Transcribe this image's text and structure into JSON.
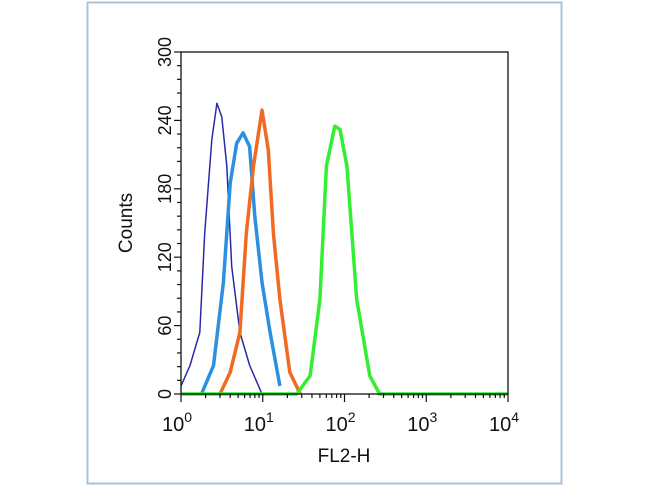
{
  "chart_data": {
    "type": "line",
    "title": "",
    "xlabel": "FL2-H",
    "ylabel": "Counts",
    "x_scale": "log",
    "xlim": [
      1,
      10000
    ],
    "ylim": [
      0,
      300
    ],
    "x_ticks": [
      1,
      10,
      100,
      1000,
      10000
    ],
    "x_tick_labels": [
      {
        "base": "10",
        "exp": "0"
      },
      {
        "base": "10",
        "exp": "1"
      },
      {
        "base": "10",
        "exp": "2"
      },
      {
        "base": "10",
        "exp": "3"
      },
      {
        "base": "10",
        "exp": "4"
      }
    ],
    "y_ticks": [
      0,
      60,
      120,
      180,
      240,
      300
    ],
    "y_tick_labels": [
      "0",
      "60",
      "120",
      "180",
      "240",
      "300"
    ],
    "grid": false,
    "legend": "none",
    "series": [
      {
        "color": "#2a2aa8",
        "x": [
          1.0,
          1.29,
          1.7,
          1.95,
          2.38,
          2.75,
          3.16,
          3.63,
          4.17,
          5.25,
          6.92,
          9.8
        ],
        "y": [
          7,
          25,
          54,
          141,
          223,
          255,
          243,
          200,
          112,
          54,
          25,
          0
        ]
      },
      {
        "color": "#2b90e2",
        "x": [
          1.78,
          2.5,
          3.3,
          4.0,
          4.8,
          5.75,
          6.9,
          8.0,
          9.8,
          12.3,
          16.2
        ],
        "y": [
          0,
          25,
          98,
          185,
          220,
          229,
          217,
          156,
          98,
          54,
          7
        ]
      },
      {
        "color": "#f26a22",
        "x": [
          3.0,
          4.0,
          5.25,
          6.3,
          7.7,
          9.8,
          11.7,
          13.5,
          16.2,
          21.4,
          28.8
        ],
        "y": [
          0,
          19,
          54,
          141,
          200,
          249,
          214,
          141,
          83,
          19,
          0
        ]
      },
      {
        "color": "#33ee33",
        "x": [
          1.0,
          26,
          38,
          50,
          60,
          76,
          88,
          107,
          141,
          204,
          269,
          10000
        ],
        "y": [
          0,
          0,
          16,
          83,
          200,
          235,
          232,
          200,
          83,
          16,
          0,
          0
        ]
      }
    ]
  },
  "frame_color": "#a9c3dc"
}
